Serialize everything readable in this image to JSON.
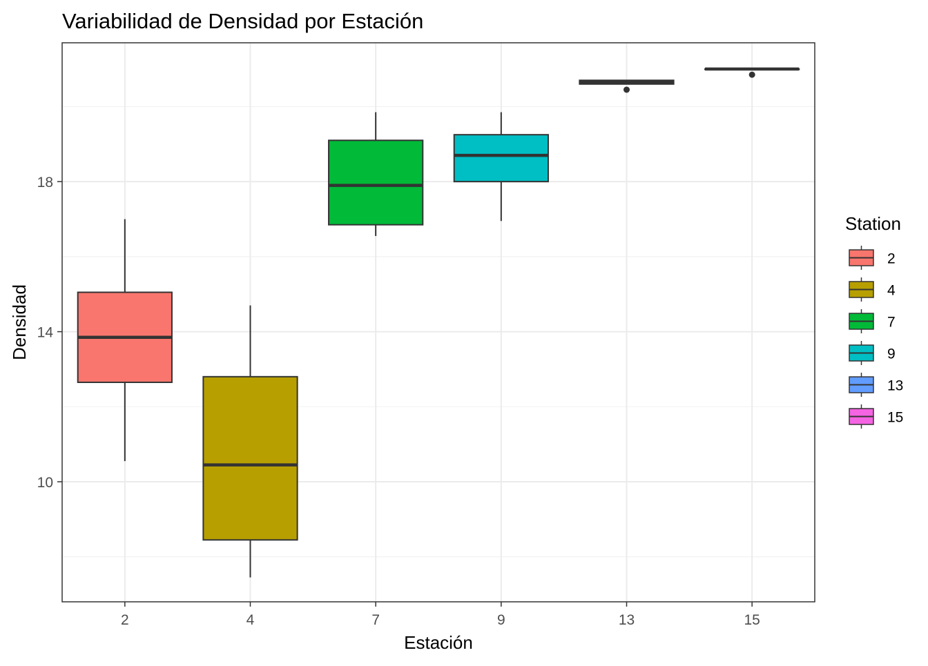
{
  "chart_data": {
    "type": "boxplot",
    "title": "Variabilidad de Densidad por Estación",
    "xlabel": "Estación",
    "ylabel": "Densidad",
    "categories": [
      "2",
      "4",
      "7",
      "9",
      "13",
      "15"
    ],
    "ylim": [
      6.8,
      21.7
    ],
    "yticks": [
      10,
      14,
      18
    ],
    "grid": true,
    "legend": {
      "title": "Station",
      "position": "right",
      "entries": [
        "2",
        "4",
        "7",
        "9",
        "13",
        "15"
      ]
    },
    "colors": [
      "#F8766D",
      "#B79F00",
      "#00BA38",
      "#00BFC4",
      "#619CFF",
      "#F564E3"
    ],
    "boxes": [
      {
        "station": "2",
        "whisker_low": 10.55,
        "q1": 12.65,
        "median": 13.85,
        "q3": 15.05,
        "whisker_high": 17.0,
        "outliers": []
      },
      {
        "station": "4",
        "whisker_low": 7.45,
        "q1": 8.45,
        "median": 10.45,
        "q3": 12.8,
        "whisker_high": 14.7,
        "outliers": []
      },
      {
        "station": "7",
        "whisker_low": 16.55,
        "q1": 16.85,
        "median": 17.9,
        "q3": 19.1,
        "whisker_high": 19.85,
        "outliers": []
      },
      {
        "station": "9",
        "whisker_low": 16.95,
        "q1": 18.0,
        "median": 18.7,
        "q3": 19.25,
        "whisker_high": 19.85,
        "outliers": []
      },
      {
        "station": "13",
        "whisker_low": 20.6,
        "q1": 20.6,
        "median": 20.65,
        "q3": 20.7,
        "whisker_high": 20.7,
        "outliers": [
          20.45
        ]
      },
      {
        "station": "15",
        "whisker_low": 21.0,
        "q1": 21.0,
        "median": 21.0,
        "q3": 21.0,
        "whisker_high": 21.0,
        "outliers": [
          20.85
        ]
      }
    ]
  }
}
